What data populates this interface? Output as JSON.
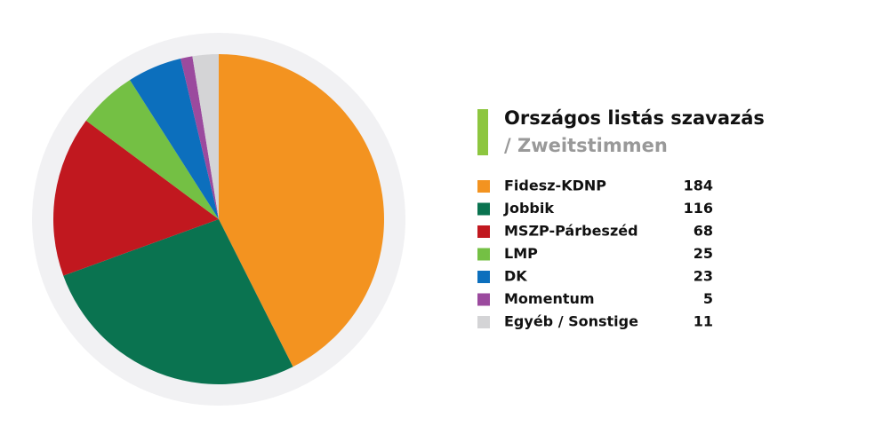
{
  "chart_data": {
    "type": "pie",
    "title": "Országos listás szavazás",
    "subtitle": "/ Zweitstimmen",
    "categories": [
      "Fidesz-KDNP",
      "Jobbik",
      "MSZP-Párbeszéd",
      "LMP",
      "DK",
      "Momentum",
      "Egyéb / Sonstige"
    ],
    "values": [
      184,
      116,
      68,
      25,
      23,
      5,
      11
    ],
    "colors": [
      "#f39320",
      "#0a7350",
      "#c1181f",
      "#74c044",
      "#0c6fbd",
      "#9b4a9e",
      "#d4d4d6"
    ]
  }
}
